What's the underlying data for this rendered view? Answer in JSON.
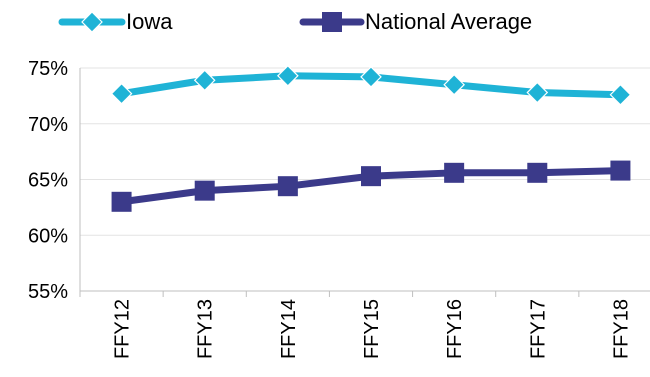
{
  "chart_data": {
    "type": "line",
    "title": "",
    "xlabel": "",
    "ylabel": "",
    "categories": [
      "FFY12",
      "FFY13",
      "FFY14",
      "FFY15",
      "FFY16",
      "FFY17",
      "FFY18"
    ],
    "ylim": [
      55,
      75
    ],
    "yticks": [
      55,
      60,
      65,
      70,
      75
    ],
    "ytick_labels": [
      "55%",
      "60%",
      "65%",
      "70%",
      "75%"
    ],
    "grid": true,
    "legend_position": "top",
    "series": [
      {
        "name": "Iowa",
        "color": "#1fb3d6",
        "marker": "diamond",
        "values": [
          72.7,
          73.9,
          74.3,
          74.2,
          73.5,
          72.8,
          72.6
        ]
      },
      {
        "name": "National Average",
        "color": "#3b3a8a",
        "marker": "square",
        "values": [
          63.0,
          64.0,
          64.4,
          65.3,
          65.6,
          65.6,
          65.8
        ]
      }
    ]
  }
}
